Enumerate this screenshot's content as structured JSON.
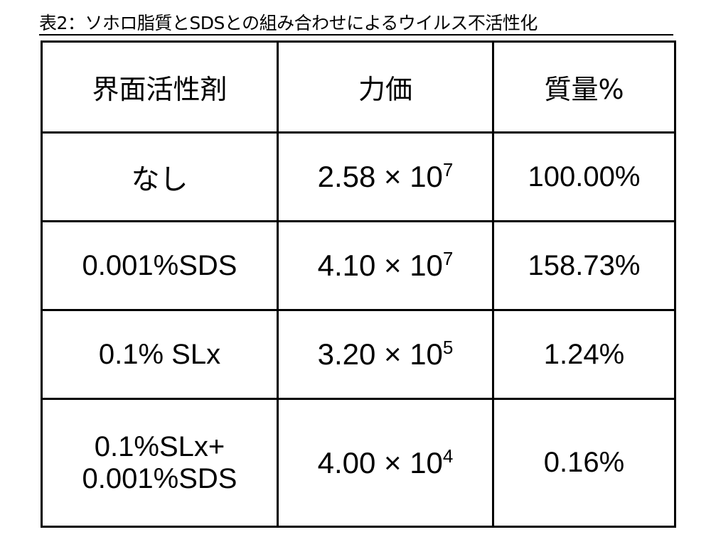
{
  "title": "表2：ソホロ脂質とSDSとの組み合わせによるウイルス不活性化",
  "table": {
    "headers": [
      "界面活性剤",
      "力価",
      "質量%"
    ],
    "rows": [
      {
        "surfactant": "なし",
        "titer_mantissa": "2.58 × 10",
        "titer_exp": "7",
        "mass": "100.00%"
      },
      {
        "surfactant": "0.001%SDS",
        "titer_mantissa": "4.10 × 10",
        "titer_exp": "7",
        "mass": "158.73%"
      },
      {
        "surfactant": "0.1% SLx",
        "titer_mantissa": "3.20 × 10",
        "titer_exp": "5",
        "mass": "1.24%"
      },
      {
        "surfactant": "0.1%SLx+",
        "surfactant_line2": "0.001%SDS",
        "titer_mantissa": "4.00 × 10",
        "titer_exp": "4",
        "mass": "0.16%"
      }
    ]
  }
}
